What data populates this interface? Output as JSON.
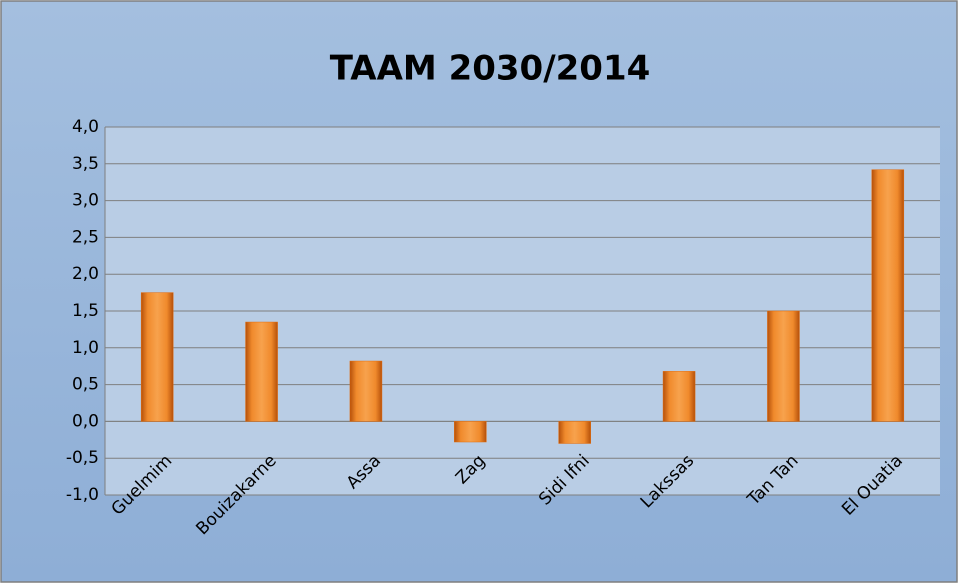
{
  "chart_data": {
    "type": "bar",
    "title": "TAAM 2030/2014",
    "categories": [
      "Guelmim",
      "Bouizakarne",
      "Assa",
      "Zag",
      "Sidi Ifni",
      "Lakssas",
      "Tan Tan",
      "El Ouatia"
    ],
    "values": [
      1.75,
      1.35,
      0.82,
      -0.28,
      -0.3,
      0.68,
      1.5,
      3.42
    ],
    "color": "#e46c0a",
    "ylim": [
      -1,
      4
    ],
    "yticks": [
      {
        "value": -1,
        "label": "-1,0"
      },
      {
        "value": -0.5,
        "label": "-0,5"
      },
      {
        "value": 0,
        "label": "0,0"
      },
      {
        "value": 0.5,
        "label": "0,5"
      },
      {
        "value": 1,
        "label": "1,0"
      },
      {
        "value": 1.5,
        "label": "1,5"
      },
      {
        "value": 2,
        "label": "2,0"
      },
      {
        "value": 2.5,
        "label": "2,5"
      },
      {
        "value": 3,
        "label": "3,0"
      },
      {
        "value": 3.5,
        "label": "3,5"
      },
      {
        "value": 4,
        "label": "4,0"
      }
    ],
    "grid": true
  }
}
